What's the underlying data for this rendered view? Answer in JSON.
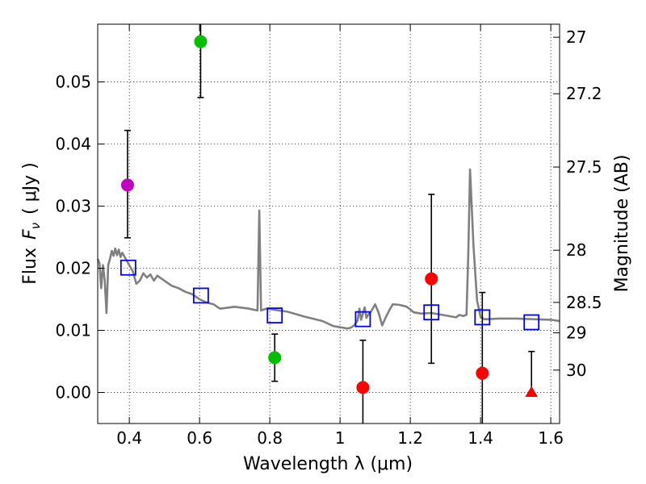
{
  "chart_data": {
    "type": "scatter",
    "xlabel": "Wavelength  λ (μm)",
    "ylabel_left_prefix": "Flux",
    "ylabel_left_symbol": "F",
    "ylabel_left_subscript": "ν",
    "ylabel_left_units": "( μJy )",
    "ylabel_right": "Magnitude (AB)",
    "xlim": [
      0.31,
      1.625
    ],
    "ylim": [
      -0.005,
      0.0593
    ],
    "grid": true,
    "x_ticks": [
      {
        "value": 0.4,
        "label": "0.4"
      },
      {
        "value": 0.6,
        "label": "0.6"
      },
      {
        "value": 0.8,
        "label": "0.8"
      },
      {
        "value": 1.0,
        "label": "1"
      },
      {
        "value": 1.2,
        "label": "1.2"
      },
      {
        "value": 1.4,
        "label": "1.4"
      },
      {
        "value": 1.6,
        "label": "1.6"
      }
    ],
    "y_ticks": [
      {
        "value": 0.0,
        "label": "0.00"
      },
      {
        "value": 0.01,
        "label": "0.01"
      },
      {
        "value": 0.02,
        "label": "0.02"
      },
      {
        "value": 0.03,
        "label": "0.03"
      },
      {
        "value": 0.04,
        "label": "0.04"
      },
      {
        "value": 0.05,
        "label": "0.05"
      }
    ],
    "mag_ticks": [
      {
        "value": 0.0572,
        "label": "27"
      },
      {
        "value": 0.0481,
        "label": "27.2"
      },
      {
        "value": 0.0363,
        "label": "27.5"
      },
      {
        "value": 0.0229,
        "label": "28"
      },
      {
        "value": 0.0145,
        "label": "28.5"
      },
      {
        "value": 0.0096,
        "label": "29"
      },
      {
        "value": 0.0036,
        "label": "30"
      }
    ],
    "model_spectrum": {
      "name": "model SED",
      "color": "#808080",
      "x": [
        0.31,
        0.315,
        0.32,
        0.325,
        0.33,
        0.335,
        0.34,
        0.345,
        0.35,
        0.355,
        0.36,
        0.365,
        0.37,
        0.375,
        0.38,
        0.39,
        0.4,
        0.41,
        0.42,
        0.43,
        0.44,
        0.45,
        0.46,
        0.47,
        0.48,
        0.5,
        0.52,
        0.54,
        0.56,
        0.58,
        0.6,
        0.62,
        0.64,
        0.65,
        0.655,
        0.66,
        0.7,
        0.74,
        0.765,
        0.77,
        0.775,
        0.79,
        0.85,
        0.9,
        0.95,
        0.98,
        1.0,
        1.01,
        1.02,
        1.03,
        1.04,
        1.05,
        1.055,
        1.06,
        1.07,
        1.075,
        1.08,
        1.09,
        1.1,
        1.11,
        1.12,
        1.13,
        1.14,
        1.15,
        1.17,
        1.19,
        1.21,
        1.23,
        1.26,
        1.3,
        1.33,
        1.34,
        1.35,
        1.36,
        1.365,
        1.37,
        1.38,
        1.39,
        1.4,
        1.41,
        1.42,
        1.45,
        1.5,
        1.55,
        1.6,
        1.625
      ],
      "y": [
        0.0215,
        0.0208,
        0.0168,
        0.0205,
        0.018,
        0.0128,
        0.0205,
        0.0215,
        0.0228,
        0.022,
        0.0232,
        0.0221,
        0.023,
        0.0218,
        0.0225,
        0.0215,
        0.0205,
        0.0195,
        0.0175,
        0.018,
        0.0192,
        0.0185,
        0.019,
        0.018,
        0.0188,
        0.018,
        0.0172,
        0.0168,
        0.0162,
        0.0158,
        0.015,
        0.0145,
        0.0142,
        0.0138,
        0.0136,
        0.0135,
        0.0138,
        0.0135,
        0.0132,
        0.0293,
        0.0132,
        0.0135,
        0.013,
        0.0122,
        0.0115,
        0.0107,
        0.0105,
        0.0104,
        0.0103,
        0.0104,
        0.0108,
        0.0116,
        0.0135,
        0.0117,
        0.0137,
        0.012,
        0.0125,
        0.0132,
        0.0142,
        0.0128,
        0.0108,
        0.0121,
        0.0132,
        0.0142,
        0.0141,
        0.0138,
        0.0129,
        0.0127,
        0.0128,
        0.0124,
        0.0121,
        0.0125,
        0.0123,
        0.0125,
        0.0222,
        0.0359,
        0.0235,
        0.0148,
        0.0122,
        0.0118,
        0.0118,
        0.0119,
        0.0119,
        0.0118,
        0.0117,
        0.0115
      ]
    },
    "model_photometry": {
      "name": "model fluxes",
      "color": "#0000ff",
      "marker": "open-square",
      "x": [
        0.397,
        0.604,
        0.814,
        1.065,
        1.26,
        1.405,
        1.545
      ],
      "y": [
        0.0201,
        0.0156,
        0.0124,
        0.0118,
        0.0129,
        0.0121,
        0.0113
      ]
    },
    "observed": [
      {
        "x": 0.395,
        "y": 0.0334,
        "err_low": 0.0085,
        "err_high": 0.0088,
        "color": "#bf00bf",
        "marker": "circle"
      },
      {
        "x": 0.603,
        "y": 0.0565,
        "err_low": 0.009,
        "err_high": 0.006,
        "color": "#00bf00",
        "marker": "circle"
      },
      {
        "x": 0.814,
        "y": 0.0056,
        "err_low": 0.0038,
        "err_high": 0.0038,
        "color": "#00bf00",
        "marker": "circle"
      },
      {
        "x": 1.065,
        "y": 0.0008,
        "err_low": 0.008,
        "err_high": 0.0076,
        "color": "#ff0000",
        "marker": "circle"
      },
      {
        "x": 1.26,
        "y": 0.0183,
        "err_low": 0.0136,
        "err_high": 0.0136,
        "color": "#ff0000",
        "marker": "circle"
      },
      {
        "x": 1.405,
        "y": 0.0031,
        "err_low": 0.013,
        "err_high": 0.013,
        "color": "#ff0000",
        "marker": "circle"
      },
      {
        "x": 1.545,
        "y": 0.0,
        "err_low": 0.0,
        "err_high": 0.0066,
        "color": "#ff0000",
        "marker": "triangle"
      }
    ]
  }
}
